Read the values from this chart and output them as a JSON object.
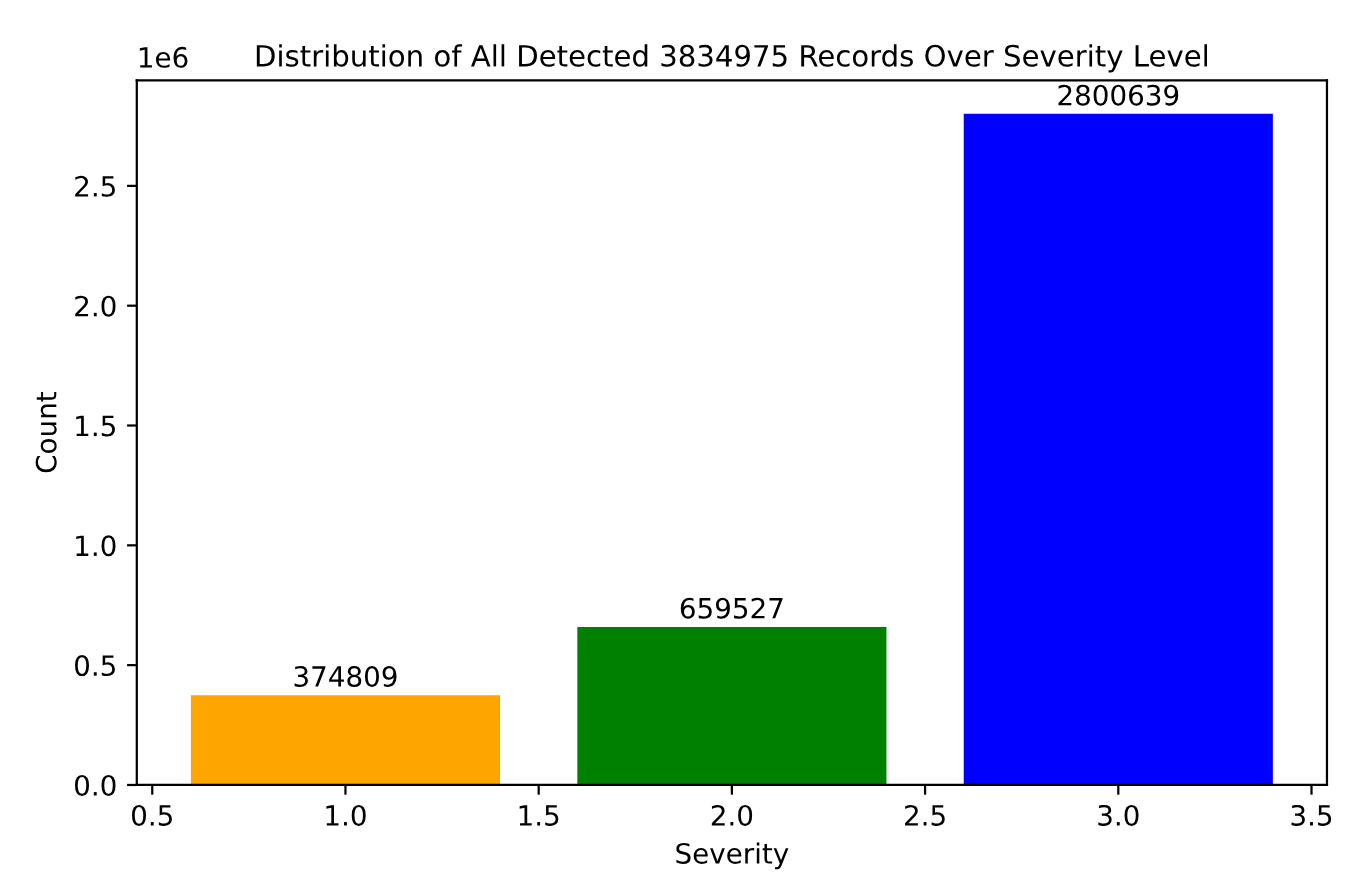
{
  "chart_data": {
    "type": "bar",
    "title": "Distribution of All Detected 3834975 Records Over Severity Level",
    "xlabel": "Severity",
    "ylabel": "Count",
    "x": [
      1,
      2,
      3
    ],
    "values": [
      0.374809,
      0.659527,
      2.800639
    ],
    "colors": [
      "#ffa500",
      "#008000",
      "#0000ff"
    ],
    "xlim": [
      0.46,
      3.54
    ],
    "xticks": [
      {
        "value": 0.5,
        "label": "0.5"
      },
      {
        "value": 1.0,
        "label": "1.0"
      },
      {
        "value": 1.5,
        "label": "1.5"
      },
      {
        "value": 2.0,
        "label": "2.0"
      },
      {
        "value": 2.5,
        "label": "2.5"
      },
      {
        "value": 3.0,
        "label": "3.0"
      },
      {
        "value": 3.5,
        "label": "3.5"
      }
    ],
    "ylim": [
      0,
      2.940671
    ],
    "yticks": [
      {
        "value": 0,
        "label": "0.0"
      },
      {
        "value": 0.5,
        "label": "0.5"
      },
      {
        "value": 1,
        "label": "1.0"
      },
      {
        "value": 1.5,
        "label": "1.5"
      },
      {
        "value": 2,
        "label": "2.0"
      },
      {
        "value": 2.5,
        "label": "2.5"
      }
    ],
    "annotations": [
      "1e6",
      {
        "text": "374809",
        "x": 1,
        "y": 0.374809
      },
      {
        "text": "659527",
        "x": 2,
        "y": 0.659527
      },
      {
        "text": "2800639",
        "x": 3,
        "y": 2.800639
      }
    ],
    "grid": false,
    "legend": false
  }
}
